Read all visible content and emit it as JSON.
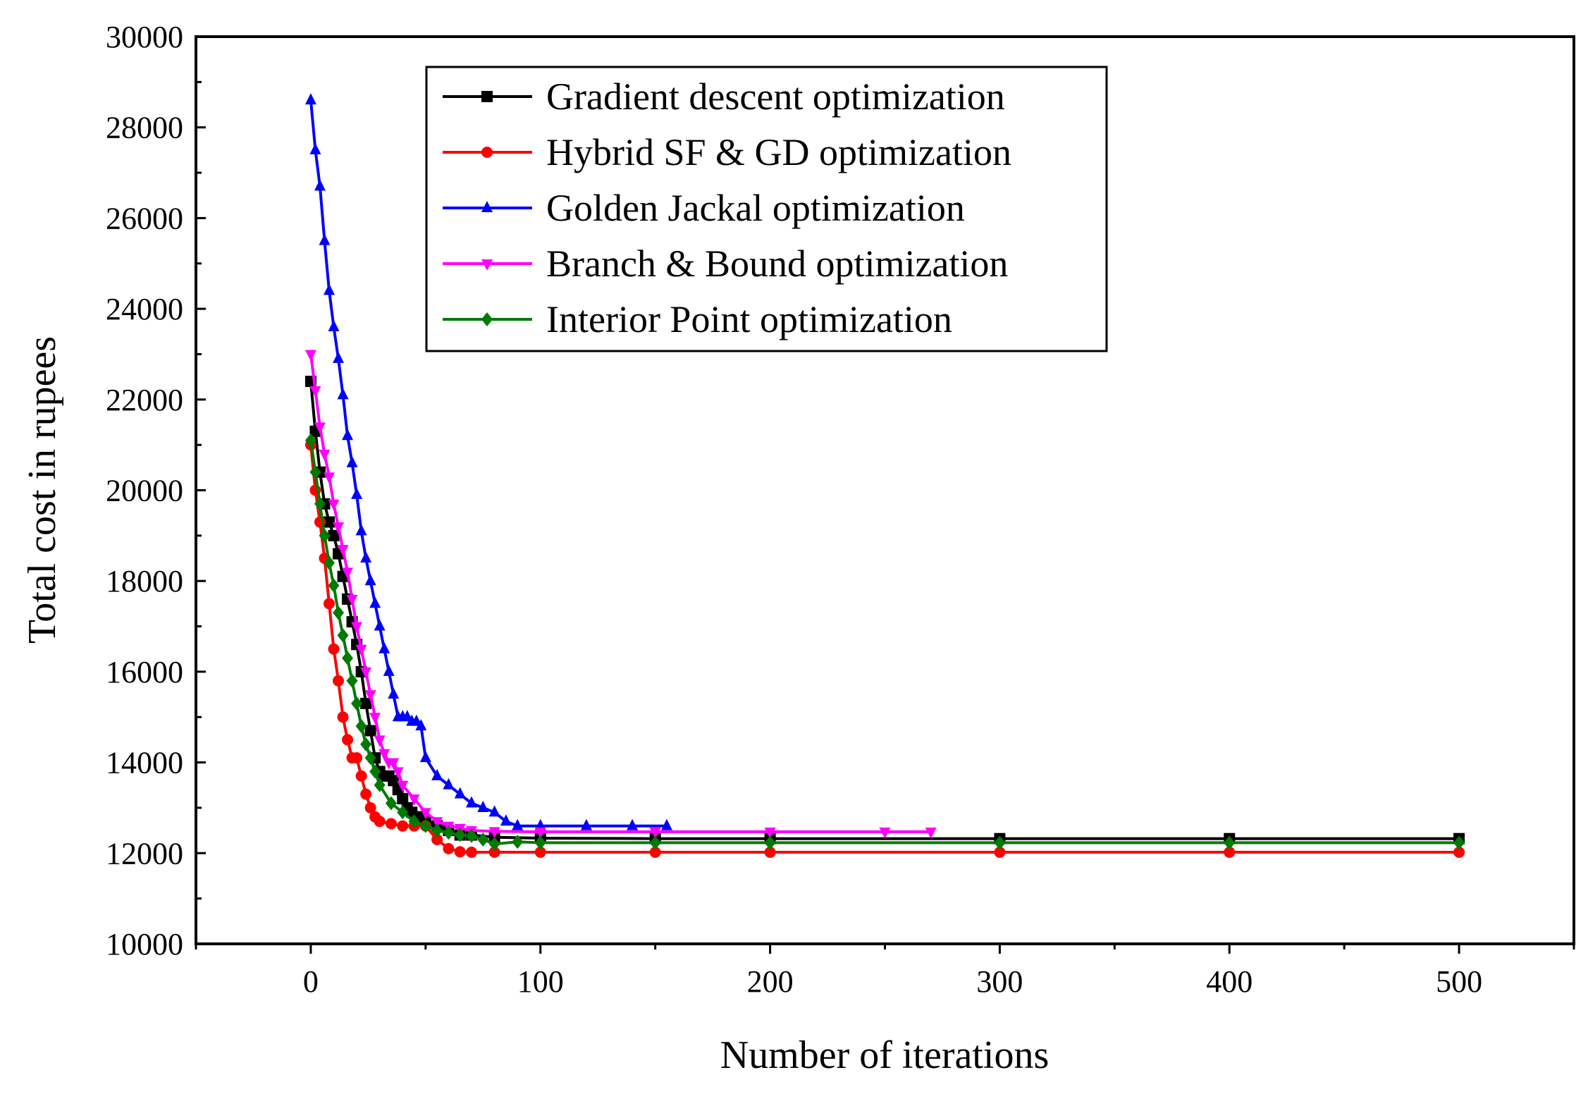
{
  "chart_data": {
    "type": "line",
    "title": "",
    "xlabel": "Number of iterations",
    "ylabel": "Total cost in rupees",
    "xlim": [
      -50,
      550
    ],
    "ylim": [
      10000,
      30000
    ],
    "xticks": [
      0,
      100,
      200,
      300,
      400,
      500
    ],
    "xtick_labels": [
      "0",
      "100",
      "200",
      "300",
      "400",
      "500"
    ],
    "yticks": [
      10000,
      12000,
      14000,
      16000,
      18000,
      20000,
      22000,
      24000,
      26000,
      28000,
      30000
    ],
    "ytick_labels": [
      "10000",
      "12000",
      "14000",
      "16000",
      "18000",
      "20000",
      "22000",
      "24000",
      "26000",
      "28000",
      "30000"
    ],
    "legend_position": "top-center",
    "series": [
      {
        "name": "Gradient descent optimization",
        "color": "#000000",
        "marker": "square",
        "x": [
          0,
          2,
          4,
          6,
          8,
          10,
          12,
          14,
          16,
          18,
          20,
          22,
          24,
          26,
          28,
          30,
          32,
          34,
          36,
          38,
          40,
          42,
          44,
          46,
          48,
          50,
          55,
          60,
          65,
          70,
          80,
          100,
          150,
          200,
          300,
          400,
          500
        ],
        "y": [
          22400,
          21300,
          20400,
          19700,
          19300,
          19000,
          18600,
          18100,
          17600,
          17100,
          16600,
          16000,
          15300,
          14700,
          14100,
          13800,
          13700,
          13700,
          13600,
          13400,
          13200,
          13000,
          12900,
          12800,
          12800,
          12700,
          12600,
          12500,
          12400,
          12400,
          12350,
          12330,
          12320,
          12320,
          12320,
          12320,
          12320
        ]
      },
      {
        "name": "Hybrid SF & GD optimization",
        "color": "#ff0000",
        "marker": "circle",
        "x": [
          0,
          2,
          4,
          6,
          8,
          10,
          12,
          14,
          16,
          18,
          20,
          22,
          24,
          26,
          28,
          30,
          35,
          40,
          45,
          50,
          55,
          60,
          65,
          70,
          80,
          100,
          150,
          200,
          300,
          400,
          500
        ],
        "y": [
          21000,
          20000,
          19300,
          18500,
          17500,
          16500,
          15800,
          15000,
          14500,
          14100,
          14100,
          13700,
          13300,
          13000,
          12800,
          12700,
          12650,
          12600,
          12600,
          12600,
          12300,
          12100,
          12030,
          12020,
          12020,
          12020,
          12020,
          12020,
          12020,
          12020,
          12020
        ]
      },
      {
        "name": "Golden Jackal optimization",
        "color": "#0000ff",
        "marker": "triangle-up",
        "x": [
          0,
          2,
          4,
          6,
          8,
          10,
          12,
          14,
          16,
          18,
          20,
          22,
          24,
          26,
          28,
          30,
          32,
          34,
          36,
          38,
          40,
          42,
          44,
          46,
          48,
          50,
          55,
          60,
          65,
          70,
          75,
          80,
          85,
          90,
          100,
          120,
          140,
          155
        ],
        "y": [
          28600,
          27500,
          26700,
          25500,
          24400,
          23600,
          22900,
          22100,
          21200,
          20600,
          19900,
          19100,
          18500,
          18000,
          17500,
          17000,
          16500,
          16000,
          15500,
          15000,
          15000,
          15000,
          14900,
          14900,
          14800,
          14100,
          13700,
          13500,
          13300,
          13100,
          13000,
          12900,
          12700,
          12600,
          12600,
          12600,
          12600,
          12600
        ]
      },
      {
        "name": "Branch & Bound optimization",
        "color": "#ff00ff",
        "marker": "triangle-down",
        "x": [
          0,
          2,
          4,
          6,
          8,
          10,
          12,
          14,
          16,
          18,
          20,
          22,
          24,
          26,
          28,
          30,
          32,
          34,
          36,
          38,
          40,
          45,
          50,
          55,
          60,
          65,
          70,
          80,
          100,
          150,
          200,
          250,
          270
        ],
        "y": [
          23000,
          22200,
          21400,
          20800,
          20300,
          19700,
          19200,
          18700,
          18200,
          17600,
          17000,
          16500,
          16000,
          15500,
          15000,
          14500,
          14200,
          14000,
          14000,
          13800,
          13500,
          13200,
          12900,
          12700,
          12600,
          12550,
          12500,
          12480,
          12470,
          12470,
          12470,
          12470,
          12470
        ]
      },
      {
        "name": "Interior Point optimization",
        "color": "#007a00",
        "marker": "diamond",
        "x": [
          0,
          2,
          4,
          6,
          8,
          10,
          12,
          14,
          16,
          18,
          20,
          22,
          24,
          26,
          28,
          30,
          35,
          40,
          45,
          50,
          55,
          60,
          65,
          70,
          75,
          80,
          90,
          100,
          150,
          200,
          300,
          400,
          500
        ],
        "y": [
          21100,
          20400,
          19700,
          19000,
          18400,
          17900,
          17300,
          16800,
          16300,
          15800,
          15300,
          14800,
          14400,
          14100,
          13800,
          13500,
          13100,
          12900,
          12700,
          12600,
          12500,
          12450,
          12400,
          12380,
          12300,
          12200,
          12250,
          12230,
          12230,
          12230,
          12230,
          12230,
          12230
        ]
      }
    ]
  }
}
